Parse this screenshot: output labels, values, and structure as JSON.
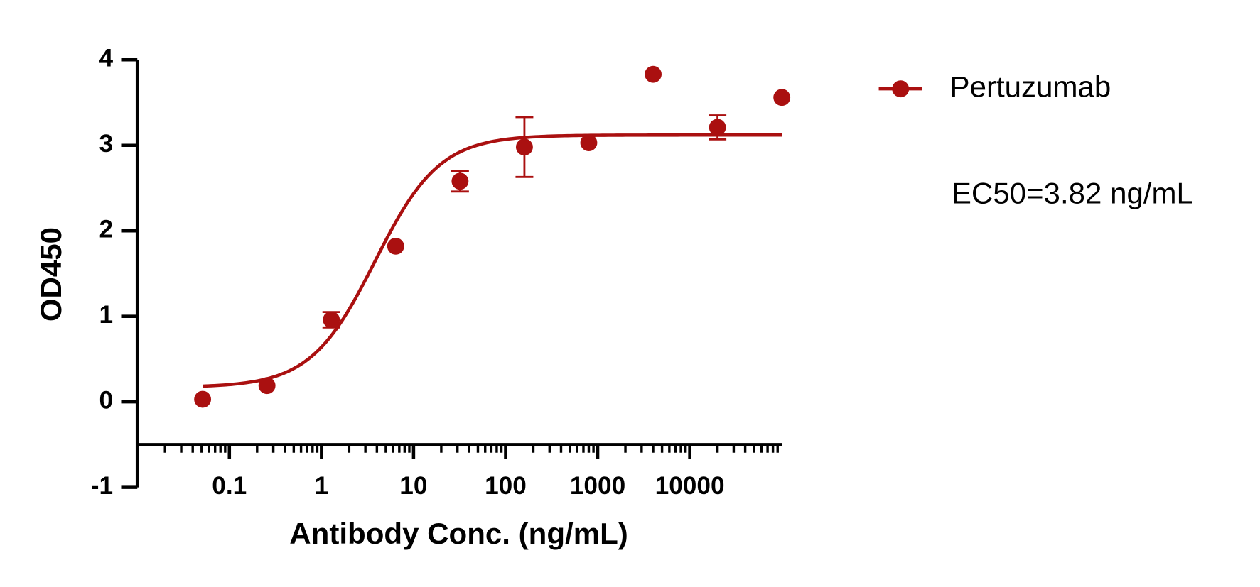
{
  "chart_data": {
    "type": "scatter",
    "xlabel": "Antibody Conc. (ng/mL)",
    "ylabel": "OD450",
    "annotation": "EC50=3.82 ng/mL",
    "x_log": true,
    "xlim": [
      0.01,
      100000
    ],
    "xticks": [
      0.1,
      1,
      10,
      100,
      1000,
      10000
    ],
    "minor_ticks": true,
    "ylim": [
      -1,
      4
    ],
    "yticks": [
      -1,
      0,
      1,
      2,
      3,
      4
    ],
    "x_axis_crossing": -0.5,
    "legend": "top-right",
    "series": [
      {
        "name": "Pertuzumab",
        "color": "#aa1010",
        "x": [
          0.0512,
          0.256,
          1.28,
          6.4,
          32,
          160,
          800,
          4000,
          20000,
          100000
        ],
        "values": [
          0.03,
          0.19,
          0.96,
          1.82,
          2.58,
          2.98,
          3.03,
          3.83,
          3.21,
          3.56
        ],
        "errors": [
          null,
          null,
          0.09,
          null,
          0.12,
          0.35,
          null,
          null,
          0.14,
          null
        ],
        "fit": {
          "bottom": 0.17,
          "top": 3.12,
          "ec50": 3.82,
          "hill": 1.24
        }
      }
    ]
  }
}
